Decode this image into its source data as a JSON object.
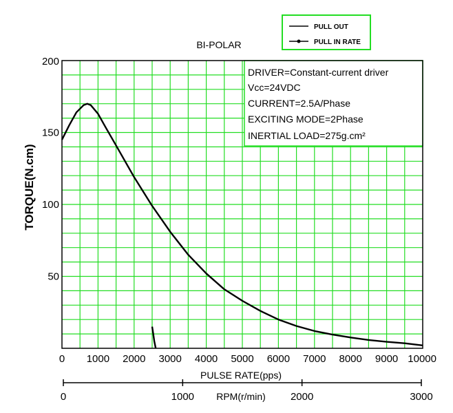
{
  "chart_data": {
    "type": "line",
    "title": "BI-POLAR",
    "xlabel": "PULSE RATE(pps)",
    "ylabel": "TORQUE(N.cm)",
    "secondary_xlabel": "RPM(r/min)",
    "xlim": [
      0,
      10000
    ],
    "ylim": [
      0,
      200
    ],
    "x_ticks": [
      "0",
      "1000",
      "2000",
      "3000",
      "4000",
      "5000",
      "6000",
      "7000",
      "8000",
      "9000",
      "10000"
    ],
    "y_ticks": [
      "50",
      "100",
      "150",
      "200"
    ],
    "rpm_ticks": [
      "0",
      "1000",
      "2000",
      "3000"
    ],
    "grid": true,
    "grid_color": "#22dd22",
    "legend_position": "top-right",
    "legend": [
      "PULL OUT",
      "PULL IN RATE"
    ],
    "info_lines": [
      "DRIVER=Constant-current driver",
      "Vcc=24VDC",
      "CURRENT=2.5A/Phase",
      "EXCITING MODE=2Phase",
      "INERTIAL LOAD=275g.cm²"
    ],
    "series": [
      {
        "name": "PULL OUT",
        "x": [
          0,
          200,
          400,
          600,
          700,
          800,
          1000,
          1200,
          1500,
          2000,
          2500,
          3000,
          3500,
          4000,
          4500,
          5000,
          5500,
          6000,
          6500,
          7000,
          7500,
          8000,
          8500,
          9000,
          9500,
          10000
        ],
        "y": [
          145,
          155,
          164,
          169,
          170,
          169,
          163,
          154,
          141,
          119,
          99,
          81,
          65,
          52,
          41,
          33,
          26,
          20,
          15.5,
          12,
          9.5,
          7.5,
          5.8,
          4.5,
          3.5,
          2
        ]
      },
      {
        "name": "PULL IN RATE",
        "x": [
          2500,
          2530,
          2560,
          2600
        ],
        "y": [
          15,
          10,
          5,
          0
        ]
      }
    ]
  }
}
